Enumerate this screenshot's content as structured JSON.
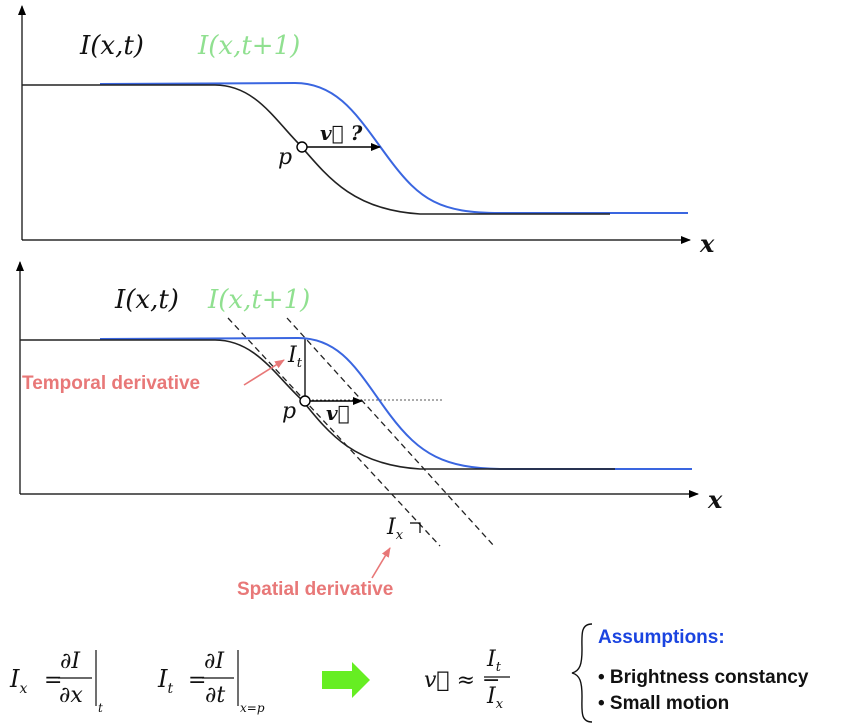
{
  "panel_top": {
    "label_black": "I(x,t)",
    "label_green": "I(x,t+1)",
    "point_label": "p",
    "velocity_label": "v⃗ ?",
    "axis_label": "x"
  },
  "panel_bottom": {
    "label_black": "I(x,t)",
    "label_green": "I(x,t+1)",
    "point_label": "p",
    "velocity_label": "v⃗",
    "it_label": "I",
    "it_sub": "t",
    "ix_label": "I",
    "ix_sub": "x",
    "axis_label": "x",
    "temporal_text": "Temporal derivative",
    "spatial_text": "Spatial derivative"
  },
  "equations": {
    "ix_lhs": "I",
    "ix_lhs_sub": "x",
    "ix_num": "∂I",
    "ix_den": "∂x",
    "ix_eval": "t",
    "it_lhs": "I",
    "it_lhs_sub": "t",
    "it_num": "∂I",
    "it_den": "∂t",
    "it_eval": "x=p",
    "v_lhs": "v⃗ ≈ −",
    "v_num": "I",
    "v_num_sub": "t",
    "v_den": "I",
    "v_den_sub": "x"
  },
  "assumptions": {
    "title": "Assumptions:",
    "items": [
      "• Brightness constancy",
      "• Small motion"
    ]
  },
  "colors": {
    "curve_black": "#222222",
    "curve_blue": "#3a66e0",
    "label_green": "#90e090",
    "annotation_red": "#e87878",
    "arrow_green": "#66ee22",
    "assumption_blue": "#1a44e0"
  }
}
